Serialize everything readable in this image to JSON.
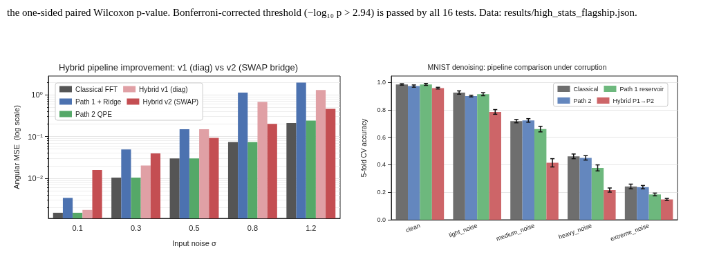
{
  "chart_data": [
    {
      "type": "bar",
      "title": "Hybrid pipeline improvement: v1 (diag) vs v2 (SWAP bridge)",
      "xlabel": "Input noise σ",
      "ylabel": "Angular MSE  (log scale)",
      "annotations": [
        "the one-sided paired Wilcoxon p-value.  Bonferroni-corrected threshold (−log₁₀ p > 2.94) is passed by all 16 tests.  Data: results/high_stats_flagship.json."
      ],
      "categories": [
        "0.1",
        "0.3",
        "0.5",
        "0.8",
        "1.2"
      ],
      "log": "y",
      "ylim": [
        0.0011,
        2.8
      ],
      "yticks": [
        {
          "value": 0.01,
          "label": "10⁻²"
        },
        {
          "value": 0.1,
          "label": "10⁻¹"
        },
        {
          "value": 1,
          "label": "10⁰"
        }
      ],
      "grid": "y",
      "legend": "top left",
      "series": [
        {
          "name": "Classical FFT",
          "color": "#555555",
          "values": [
            0.0015,
            0.0104,
            0.03,
            0.074,
            0.21
          ]
        },
        {
          "name": "Path 1 + Ridge",
          "color": "#4c72b0",
          "values": [
            0.0034,
            0.049,
            0.15,
            1.12,
            1.95
          ]
        },
        {
          "name": "Path 2 QPE",
          "color": "#55a868",
          "values": [
            0.0015,
            0.0104,
            0.03,
            0.074,
            0.24
          ]
        },
        {
          "name": "Hybrid v1 (diag)",
          "color": "#e0a0a5",
          "values": [
            0.00175,
            0.0202,
            0.15,
            0.67,
            1.3
          ]
        },
        {
          "name": "Hybrid v2 (SWAP)",
          "color": "#c44e52",
          "values": [
            0.0158,
            0.0395,
            0.093,
            0.2,
            0.46
          ]
        }
      ]
    },
    {
      "type": "bar",
      "title": "MNIST denoising: pipeline comparison under corruption",
      "ylabel": "5-fold CV accuracy",
      "categories": [
        "clean",
        "light_noise",
        "medium_noise",
        "heavy_noise",
        "extreme_noise"
      ],
      "ylim": [
        0,
        1.045
      ],
      "yticks": [
        {
          "value": 0,
          "label": "0.0"
        },
        0.2,
        0.4,
        0.6,
        0.8,
        {
          "value": 1,
          "label": "1.0"
        }
      ],
      "grid": "y",
      "legend": "top right",
      "series": [
        {
          "name": "Classical",
          "color": "#6e6e6e",
          "values": [
            0.984,
            0.925,
            0.717,
            0.461,
            0.242
          ],
          "errors": [
            0.005,
            0.012,
            0.012,
            0.017,
            0.017
          ]
        },
        {
          "name": "Path 2",
          "color": "#6487be",
          "values": [
            0.972,
            0.899,
            0.722,
            0.45,
            0.237
          ],
          "errors": [
            0.008,
            0.006,
            0.013,
            0.016,
            0.012
          ]
        },
        {
          "name": "Path 1 reservoir",
          "color": "#6db87d",
          "values": [
            0.984,
            0.913,
            0.659,
            0.377,
            0.184
          ],
          "errors": [
            0.007,
            0.011,
            0.02,
            0.022,
            0.01
          ]
        },
        {
          "name": "Hybrid P1→P2",
          "color": "#cd6568",
          "values": [
            0.957,
            0.784,
            0.414,
            0.216,
            0.148
          ],
          "errors": [
            0.006,
            0.017,
            0.03,
            0.015,
            0.007
          ]
        }
      ]
    }
  ]
}
